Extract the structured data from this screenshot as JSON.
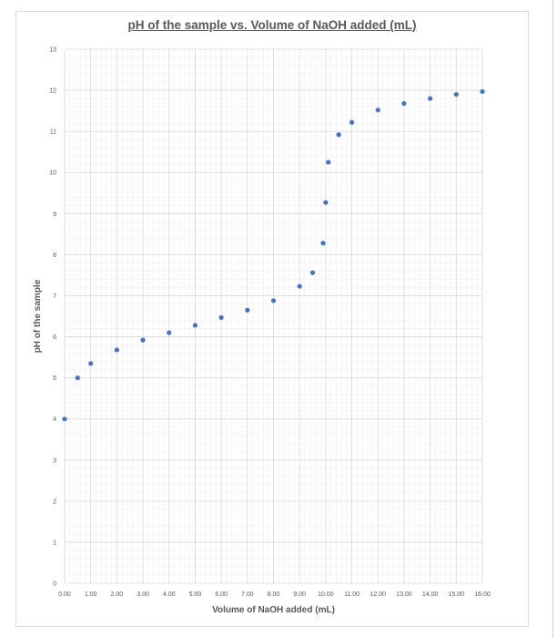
{
  "chart_data": {
    "type": "scatter",
    "title": "pH of the sample vs. Volume of NaOH added (mL)",
    "xlabel": "Volume of NaOH added (mL)",
    "ylabel": "pH of the sample",
    "xlim": [
      0,
      16
    ],
    "ylim": [
      0,
      13
    ],
    "x_ticks": [
      "0.00",
      "1.00",
      "2.00",
      "3.00",
      "4.00",
      "5.00",
      "6.00",
      "7.00",
      "8.00",
      "9.00",
      "10.00",
      "11.00",
      "12.00",
      "13.00",
      "14.00",
      "15.00",
      "16.00"
    ],
    "y_ticks": [
      "0",
      "1",
      "2",
      "3",
      "4",
      "5",
      "6",
      "7",
      "8",
      "9",
      "10",
      "11",
      "12",
      "13"
    ],
    "grid": true,
    "marker_color": "#4472c4",
    "series": [
      {
        "x": [
          0,
          0.5,
          1,
          2,
          3,
          4,
          5,
          6,
          7,
          8,
          9,
          9.5,
          9.9,
          10,
          10.1,
          10.5,
          11,
          12,
          13,
          14,
          15,
          16
        ],
        "y": [
          4.0,
          5.0,
          5.35,
          5.68,
          5.92,
          6.1,
          6.28,
          6.47,
          6.65,
          6.88,
          7.23,
          7.56,
          8.28,
          9.27,
          10.25,
          10.92,
          11.22,
          11.52,
          11.68,
          11.8,
          11.9,
          11.97
        ]
      }
    ]
  }
}
